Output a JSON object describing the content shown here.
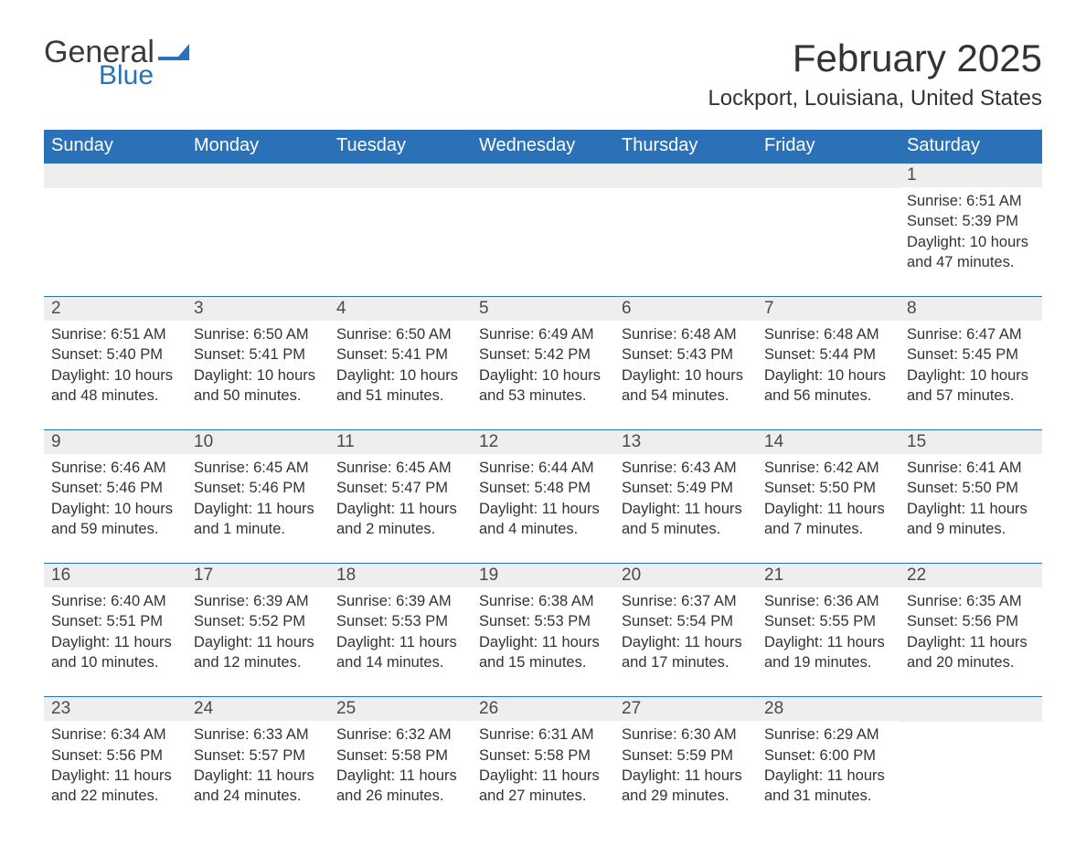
{
  "logo": {
    "word1": "General",
    "word2": "Blue",
    "flag_color": "#2a71b8",
    "text_color": "#3a3a3a"
  },
  "title": "February 2025",
  "subtitle": "Lockport, Louisiana, United States",
  "colors": {
    "header_bg": "#2a71b8",
    "header_text": "#ffffff",
    "daynum_bg": "#eeeeee",
    "body_text": "#333333",
    "page_bg": "#ffffff",
    "week_border": "#2a71b8"
  },
  "typography": {
    "title_fontsize": 42,
    "subtitle_fontsize": 24,
    "header_fontsize": 20,
    "daynum_fontsize": 19,
    "body_fontsize": 16.5,
    "font_family": "Segoe UI"
  },
  "day_headers": [
    "Sunday",
    "Monday",
    "Tuesday",
    "Wednesday",
    "Thursday",
    "Friday",
    "Saturday"
  ],
  "weeks": [
    [
      null,
      null,
      null,
      null,
      null,
      null,
      {
        "n": "1",
        "sunrise": "6:51 AM",
        "sunset": "5:39 PM",
        "daylight": "10 hours and 47 minutes."
      }
    ],
    [
      {
        "n": "2",
        "sunrise": "6:51 AM",
        "sunset": "5:40 PM",
        "daylight": "10 hours and 48 minutes."
      },
      {
        "n": "3",
        "sunrise": "6:50 AM",
        "sunset": "5:41 PM",
        "daylight": "10 hours and 50 minutes."
      },
      {
        "n": "4",
        "sunrise": "6:50 AM",
        "sunset": "5:41 PM",
        "daylight": "10 hours and 51 minutes."
      },
      {
        "n": "5",
        "sunrise": "6:49 AM",
        "sunset": "5:42 PM",
        "daylight": "10 hours and 53 minutes."
      },
      {
        "n": "6",
        "sunrise": "6:48 AM",
        "sunset": "5:43 PM",
        "daylight": "10 hours and 54 minutes."
      },
      {
        "n": "7",
        "sunrise": "6:48 AM",
        "sunset": "5:44 PM",
        "daylight": "10 hours and 56 minutes."
      },
      {
        "n": "8",
        "sunrise": "6:47 AM",
        "sunset": "5:45 PM",
        "daylight": "10 hours and 57 minutes."
      }
    ],
    [
      {
        "n": "9",
        "sunrise": "6:46 AM",
        "sunset": "5:46 PM",
        "daylight": "10 hours and 59 minutes."
      },
      {
        "n": "10",
        "sunrise": "6:45 AM",
        "sunset": "5:46 PM",
        "daylight": "11 hours and 1 minute."
      },
      {
        "n": "11",
        "sunrise": "6:45 AM",
        "sunset": "5:47 PM",
        "daylight": "11 hours and 2 minutes."
      },
      {
        "n": "12",
        "sunrise": "6:44 AM",
        "sunset": "5:48 PM",
        "daylight": "11 hours and 4 minutes."
      },
      {
        "n": "13",
        "sunrise": "6:43 AM",
        "sunset": "5:49 PM",
        "daylight": "11 hours and 5 minutes."
      },
      {
        "n": "14",
        "sunrise": "6:42 AM",
        "sunset": "5:50 PM",
        "daylight": "11 hours and 7 minutes."
      },
      {
        "n": "15",
        "sunrise": "6:41 AM",
        "sunset": "5:50 PM",
        "daylight": "11 hours and 9 minutes."
      }
    ],
    [
      {
        "n": "16",
        "sunrise": "6:40 AM",
        "sunset": "5:51 PM",
        "daylight": "11 hours and 10 minutes."
      },
      {
        "n": "17",
        "sunrise": "6:39 AM",
        "sunset": "5:52 PM",
        "daylight": "11 hours and 12 minutes."
      },
      {
        "n": "18",
        "sunrise": "6:39 AM",
        "sunset": "5:53 PM",
        "daylight": "11 hours and 14 minutes."
      },
      {
        "n": "19",
        "sunrise": "6:38 AM",
        "sunset": "5:53 PM",
        "daylight": "11 hours and 15 minutes."
      },
      {
        "n": "20",
        "sunrise": "6:37 AM",
        "sunset": "5:54 PM",
        "daylight": "11 hours and 17 minutes."
      },
      {
        "n": "21",
        "sunrise": "6:36 AM",
        "sunset": "5:55 PM",
        "daylight": "11 hours and 19 minutes."
      },
      {
        "n": "22",
        "sunrise": "6:35 AM",
        "sunset": "5:56 PM",
        "daylight": "11 hours and 20 minutes."
      }
    ],
    [
      {
        "n": "23",
        "sunrise": "6:34 AM",
        "sunset": "5:56 PM",
        "daylight": "11 hours and 22 minutes."
      },
      {
        "n": "24",
        "sunrise": "6:33 AM",
        "sunset": "5:57 PM",
        "daylight": "11 hours and 24 minutes."
      },
      {
        "n": "25",
        "sunrise": "6:32 AM",
        "sunset": "5:58 PM",
        "daylight": "11 hours and 26 minutes."
      },
      {
        "n": "26",
        "sunrise": "6:31 AM",
        "sunset": "5:58 PM",
        "daylight": "11 hours and 27 minutes."
      },
      {
        "n": "27",
        "sunrise": "6:30 AM",
        "sunset": "5:59 PM",
        "daylight": "11 hours and 29 minutes."
      },
      {
        "n": "28",
        "sunrise": "6:29 AM",
        "sunset": "6:00 PM",
        "daylight": "11 hours and 31 minutes."
      },
      null
    ]
  ],
  "labels": {
    "sunrise": "Sunrise: ",
    "sunset": "Sunset: ",
    "daylight": "Daylight: "
  }
}
